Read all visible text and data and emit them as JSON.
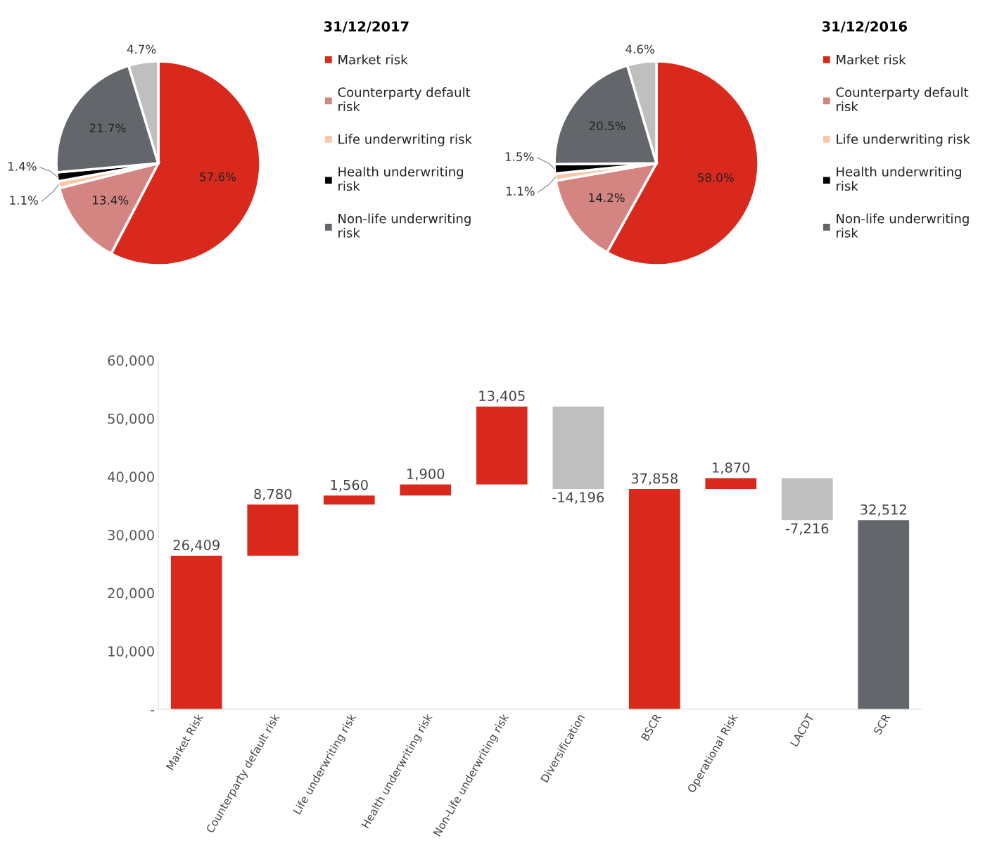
{
  "chart_data": [
    {
      "type": "pie",
      "title": "31/12/2017",
      "categories": [
        "Market risk",
        "Counterparty default risk",
        "Life underwriting risk",
        "Health underwriting risk",
        "Non-life underwriting risk",
        null
      ],
      "values": [
        57.6,
        13.4,
        1.1,
        1.4,
        21.7,
        4.7
      ],
      "colors": [
        "#d9291c",
        "#d48481",
        "#f9c8a8",
        "#000000",
        "#63666a",
        "#bfbfbf"
      ],
      "value_labels": [
        "57.6%",
        "13.4%",
        "1.1%",
        "1.4%",
        "21.7%",
        "4.7%"
      ],
      "legend": "right"
    },
    {
      "type": "pie",
      "title": "31/12/2016",
      "categories": [
        "Market risk",
        "Counterparty default risk",
        "Life underwriting risk",
        "Health underwriting risk",
        "Non-life underwriting risk",
        null
      ],
      "values": [
        58.0,
        14.2,
        1.1,
        1.5,
        20.5,
        4.6
      ],
      "colors": [
        "#d9291c",
        "#d48481",
        "#f9c8a8",
        "#000000",
        "#63666a",
        "#bfbfbf"
      ],
      "value_labels": [
        "58.0%",
        "14.2%",
        "1.1%",
        "1.5%",
        "20.5%",
        "4.6%"
      ],
      "legend": "right"
    },
    {
      "type": "bar",
      "categories": [
        "Market Risk",
        "Counterparty default risk",
        "Life underwriting risk",
        "Health underwriting risk",
        "Non-Life underwriting risk",
        "Diversification",
        "BSCR",
        "Operational Risk",
        "LACDT",
        "SCR"
      ],
      "values": [
        26409,
        8780,
        1560,
        1900,
        13405,
        -14196,
        37858,
        1870,
        -7216,
        32512
      ],
      "base": [
        0,
        26409,
        35189,
        36749,
        38649,
        52054,
        0,
        37858,
        39728,
        0
      ],
      "colors": [
        "#d9291c",
        "#d9291c",
        "#d9291c",
        "#d9291c",
        "#d9291c",
        "#bfbfbf",
        "#d9291c",
        "#d9291c",
        "#bfbfbf",
        "#63666a"
      ],
      "value_labels": [
        "26,409",
        "8,780",
        "1,560",
        "1,900",
        "13,405",
        "-14,196",
        "37,858",
        "1,870",
        "-7,216",
        "32,512"
      ],
      "ylim": [
        0,
        60000
      ],
      "yticks": [
        {
          "value": 0,
          "label": "-"
        },
        {
          "value": 10000,
          "label": "10,000"
        },
        {
          "value": 20000,
          "label": "20,000"
        },
        {
          "value": 30000,
          "label": "30,000"
        },
        {
          "value": 40000,
          "label": "40,000"
        },
        {
          "value": 50000,
          "label": "50,000"
        },
        {
          "value": 60000,
          "label": "60,000"
        }
      ],
      "grid": false,
      "legend": false
    }
  ]
}
